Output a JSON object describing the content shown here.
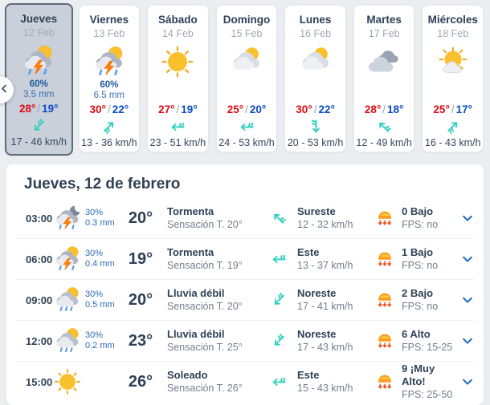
{
  "colors": {
    "temp_max_red": "#e00a14",
    "temp_min_blue": "#0b4bc4",
    "wind_teal": "#35d0c2",
    "uv_orange": "#fb9b1f",
    "chevron_blue": "#1f6fbf",
    "selected_card_bg": "#c9d0da",
    "text_dark": "#2f4156"
  },
  "labels": {
    "temp_separator": "/"
  },
  "daily": {
    "cards": [
      {
        "day": "Jueves",
        "date": "12 Feb",
        "icon": "storm-day",
        "precip_pct": "60%",
        "precip_mm": "3.5 mm",
        "temp_max": "28°",
        "temp_min": "19°",
        "wind_dir": "sw",
        "wind_speed": "17 - 46 km/h",
        "selected": true
      },
      {
        "day": "Viernes",
        "date": "13 Feb",
        "icon": "storm-day",
        "precip_pct": "60%",
        "precip_mm": "6.5 mm",
        "temp_max": "30°",
        "temp_min": "22°",
        "wind_dir": "ne",
        "wind_speed": "13 - 36 km/h",
        "selected": false
      },
      {
        "day": "Sábado",
        "date": "14 Feb",
        "icon": "sunny",
        "temp_max": "27°",
        "temp_min": "19°",
        "wind_dir": "w",
        "wind_speed": "23 - 51 km/h",
        "selected": false
      },
      {
        "day": "Domingo",
        "date": "15 Feb",
        "icon": "partly-cloudy",
        "temp_max": "25°",
        "temp_min": "20°",
        "wind_dir": "w",
        "wind_speed": "24 - 53 km/h",
        "selected": false
      },
      {
        "day": "Lunes",
        "date": "16 Feb",
        "icon": "partly-cloudy",
        "temp_max": "30°",
        "temp_min": "22°",
        "wind_dir": "s",
        "wind_speed": "20 - 53 km/h",
        "selected": false
      },
      {
        "day": "Martes",
        "date": "17 Feb",
        "icon": "cloudy",
        "temp_max": "28°",
        "temp_min": "18°",
        "wind_dir": "nw",
        "wind_speed": "12 - 49 km/h",
        "selected": false
      },
      {
        "day": "Miércoles",
        "date": "18 Feb",
        "icon": "sun-cloud",
        "temp_max": "25°",
        "temp_min": "17°",
        "wind_dir": "ne",
        "wind_speed": "16 - 43 km/h",
        "selected": false
      }
    ]
  },
  "hourly": {
    "title": "Jueves, 12 de febrero",
    "rows": [
      {
        "time": "03:00",
        "icon": "storm-night",
        "precip_pct": "30%",
        "precip_mm": "0.3 mm",
        "temp": "20°",
        "condition": "Tormenta",
        "feels": "Sensación T. 20°",
        "wind_dir": "nw",
        "wind_label": "Sureste",
        "wind_speed": "12 - 32 km/h",
        "uv_value": "0 Bajo",
        "uv_fps": "FPS: no"
      },
      {
        "time": "06:00",
        "icon": "storm-day",
        "precip_pct": "30%",
        "precip_mm": "0.4 mm",
        "temp": "19°",
        "condition": "Tormenta",
        "feels": "Sensación T. 19°",
        "wind_dir": "w",
        "wind_label": "Este",
        "wind_speed": "13 - 37 km/h",
        "uv_value": "1 Bajo",
        "uv_fps": "FPS: no"
      },
      {
        "time": "09:00",
        "icon": "rain-sun",
        "precip_pct": "30%",
        "precip_mm": "0.5 mm",
        "temp": "20°",
        "condition": "Lluvia débil",
        "feels": "Sensación T. 20°",
        "wind_dir": "sw",
        "wind_label": "Noreste",
        "wind_speed": "17 - 41 km/h",
        "uv_value": "2 Bajo",
        "uv_fps": "FPS: no"
      },
      {
        "time": "12:00",
        "icon": "rain-sun",
        "precip_pct": "30%",
        "precip_mm": "0.2 mm",
        "temp": "23°",
        "condition": "Lluvia débil",
        "feels": "Sensación T. 25°",
        "wind_dir": "sw",
        "wind_label": "Noreste",
        "wind_speed": "17 - 43 km/h",
        "uv_value": "6 Alto",
        "uv_fps": "FPS: 15-25"
      },
      {
        "time": "15:00",
        "icon": "sunny",
        "temp": "26°",
        "condition": "Soleado",
        "feels": "Sensación T. 26°",
        "wind_dir": "w",
        "wind_label": "Este",
        "wind_speed": "15 - 43 km/h",
        "uv_value": "9 ¡Muy Alto!",
        "uv_fps": "FPS: 25-50"
      }
    ]
  }
}
